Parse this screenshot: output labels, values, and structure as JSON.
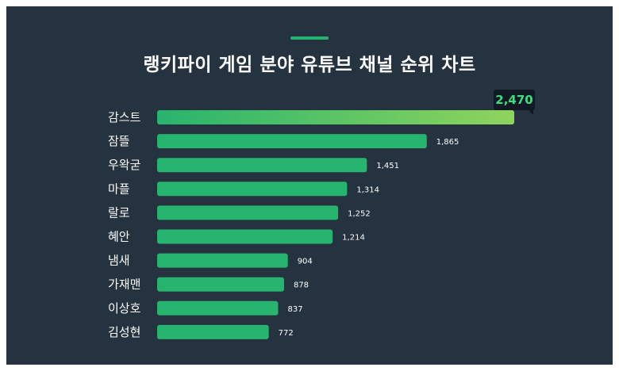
{
  "title": "랭키파이 게임 분야 유튜브 채널 순위 차트",
  "colors": {
    "background": "#25323f",
    "bar": "#27b46e",
    "top_bar_start": "#27b46e",
    "top_bar_end": "#8fd45c",
    "accent": "#27b46e",
    "callout_bg": "#111a22",
    "callout_text": "#3ddc84"
  },
  "chart_data": {
    "type": "bar",
    "orientation": "horizontal",
    "categories": [
      "감스트",
      "잠뜰",
      "우왁굳",
      "마플",
      "랄로",
      "혜안",
      "냄새",
      "가재맨",
      "이상호",
      "김성현"
    ],
    "values": [
      2470,
      1865,
      1451,
      1314,
      1252,
      1214,
      904,
      878,
      837,
      772
    ],
    "value_labels": [
      "2,470",
      "1,865",
      "1,451",
      "1,314",
      "1,252",
      "1,214",
      "904",
      "878",
      "837",
      "772"
    ],
    "title": "랭키파이 게임 분야 유튜브 채널 순위 차트",
    "xlabel": "",
    "ylabel": "",
    "xlim": [
      0,
      2470
    ],
    "grid": false,
    "highlight": "top bar with callout"
  }
}
